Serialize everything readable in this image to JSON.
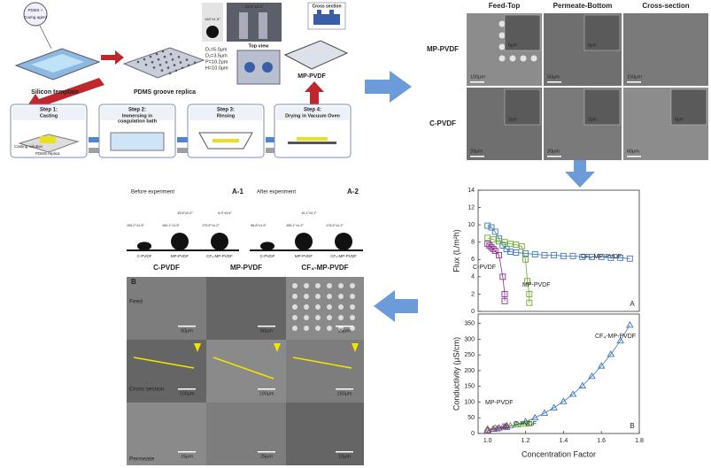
{
  "schematic": {
    "mix_label": [
      "PDMS +",
      "Curing agent"
    ],
    "silicon_template": "Silicon template",
    "pdms_replica": "PDMS groove replica",
    "params": [
      "D₁=5.0μm",
      "D₂=3.5μm",
      "P=10.2μm",
      "H=10.0μm"
    ],
    "top_view": "Top view",
    "product": "MP-PVDF",
    "cross_section": "Cross section",
    "angle_photo": [
      "33.8°±2.3°",
      "160°±1.5°"
    ],
    "steps": [
      {
        "step": "Step 1:",
        "label": [
          "Casting"
        ]
      },
      {
        "step": "Step 2:",
        "label": [
          "Immersing in",
          "coagulation bath"
        ]
      },
      {
        "step": "Step 3:",
        "label": [
          "Rinsing"
        ]
      },
      {
        "step": "Step 4:",
        "label": [
          "Drying in Vacuum Oven"
        ]
      }
    ],
    "casting_solution": "Casting solution",
    "pdms_replica_small": "PDMS replica"
  },
  "sem_top": {
    "columns": [
      "Feed-Top",
      "Permeate-Bottom",
      "Cross-section"
    ],
    "rows": [
      "MP-PVDF",
      "C-PVDF"
    ],
    "scales": [
      [
        "100μm",
        "50μm",
        "150μm"
      ],
      [
        "20μm",
        "20μm",
        "60μm"
      ]
    ],
    "inset_scales": [
      [
        "6μm",
        "6μm"
      ],
      [
        "2μm",
        "2μm",
        "6μm"
      ]
    ]
  },
  "experiment": {
    "before": "Before experiment",
    "a1": "A-1",
    "after": "After experiment",
    "a2": "A-2",
    "droplet_labels": [
      "C-PVDF",
      "MP-PVDF",
      "CF₄-MP-PVDF"
    ],
    "before_angles": [
      "106.2°±1.5°",
      "160.1°±1.5°",
      "175.5°±1.2°"
    ],
    "before_top_angles": [
      "15.8°±2.0°",
      "5.9°±3.6°"
    ],
    "after_angles": [
      "98.8°±1.5°",
      "155.1°±1.2°",
      "174.5°±1.2°"
    ],
    "after_top_angles": [
      "10.1°±2.1°"
    ],
    "headers": [
      "C-PVDF",
      "MP-PVDF",
      "CF₄-MP-PVDF"
    ],
    "sem": {
      "letter": "B",
      "rows": [
        "Feed",
        "Cross section",
        "Permeate"
      ],
      "scales": [
        [
          "60μm",
          "60μm",
          "25μm"
        ],
        [
          "100μm",
          "100μm",
          "150μm"
        ],
        [
          "15μm",
          "25μm",
          "10μm"
        ]
      ]
    }
  },
  "chart_data": [
    {
      "type": "line",
      "ylabel": "Flux (L/m²h)",
      "letter": "A",
      "xlim": [
        0.95,
        1.8
      ],
      "ylim": [
        0,
        14
      ],
      "yticks": [
        0,
        2,
        4,
        6,
        8,
        10,
        12,
        14
      ],
      "series": [
        {
          "name": "CF₄-MP-PVDF",
          "color": "#3d78b8",
          "marker": "square",
          "x": [
            1.0,
            1.02,
            1.04,
            1.06,
            1.08,
            1.1,
            1.12,
            1.15,
            1.2,
            1.25,
            1.3,
            1.35,
            1.4,
            1.45,
            1.5,
            1.55,
            1.6,
            1.65,
            1.7,
            1.75
          ],
          "values": [
            9.9,
            9.7,
            9.2,
            8.4,
            7.6,
            7.2,
            6.9,
            6.8,
            6.7,
            6.6,
            6.5,
            6.5,
            6.4,
            6.4,
            6.3,
            6.3,
            6.3,
            6.2,
            6.2,
            6.1
          ]
        },
        {
          "name": "MP-PVDF",
          "color": "#6aab2e",
          "marker": "square",
          "x": [
            1.0,
            1.03,
            1.06,
            1.09,
            1.12,
            1.15,
            1.18,
            1.2,
            1.21,
            1.22,
            1.22
          ],
          "values": [
            8.5,
            8.3,
            8.1,
            8.0,
            7.8,
            7.7,
            7.5,
            6.0,
            3.5,
            2.0,
            1.0
          ]
        },
        {
          "name": "C-PVDF",
          "color": "#8a2f8f",
          "marker": "square",
          "x": [
            1.0,
            1.01,
            1.02,
            1.03,
            1.04,
            1.06,
            1.08,
            1.09,
            1.09
          ],
          "values": [
            7.8,
            7.6,
            7.4,
            7.2,
            7.0,
            6.5,
            4.0,
            2.0,
            1.2
          ]
        }
      ]
    },
    {
      "type": "line",
      "ylabel": "Conductivity (μS/cm)",
      "xlabel": "Concentration Factor",
      "letter": "B",
      "xlim": [
        0.95,
        1.8
      ],
      "xticks": [
        {
          "value": 1,
          "label": "1.0"
        },
        1.2,
        1.4,
        1.6,
        1.8
      ],
      "ylim": [
        0,
        380
      ],
      "yticks": [
        0,
        50,
        100,
        150,
        200,
        250,
        300,
        350
      ],
      "series": [
        {
          "name": "CF₄-MP-PVDF",
          "color": "#3d78b8",
          "marker": "triangle",
          "x": [
            1.0,
            1.05,
            1.1,
            1.15,
            1.2,
            1.25,
            1.3,
            1.35,
            1.4,
            1.45,
            1.5,
            1.55,
            1.6,
            1.65,
            1.7,
            1.75
          ],
          "values": [
            10,
            15,
            20,
            28,
            38,
            50,
            65,
            82,
            102,
            125,
            152,
            182,
            215,
            252,
            295,
            345
          ]
        },
        {
          "name": "MP-PVDF",
          "color": "#6aab2e",
          "marker": "triangle",
          "x": [
            1.0,
            1.04,
            1.08,
            1.12,
            1.16,
            1.2,
            1.22
          ],
          "values": [
            15,
            18,
            22,
            25,
            28,
            30,
            32
          ]
        },
        {
          "name": "C-PVDF",
          "color": "#8a2f8f",
          "marker": "triangle",
          "x": [
            1.0,
            1.03,
            1.06,
            1.09,
            1.1
          ],
          "values": [
            10,
            14,
            18,
            22,
            25
          ]
        }
      ]
    }
  ]
}
